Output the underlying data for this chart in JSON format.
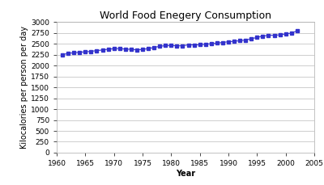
{
  "title": "World Food Enegery Consumption",
  "xlabel": "Year",
  "ylabel": "Kilocalories per person per day",
  "years": [
    1961,
    1962,
    1963,
    1964,
    1965,
    1966,
    1967,
    1968,
    1969,
    1970,
    1971,
    1972,
    1973,
    1974,
    1975,
    1976,
    1977,
    1978,
    1979,
    1980,
    1981,
    1982,
    1983,
    1984,
    1985,
    1986,
    1987,
    1988,
    1989,
    1990,
    1991,
    1992,
    1993,
    1994,
    1995,
    1996,
    1997,
    1998,
    1999,
    2000,
    2001,
    2002
  ],
  "values": [
    2254,
    2283,
    2298,
    2310,
    2318,
    2330,
    2347,
    2360,
    2378,
    2391,
    2395,
    2380,
    2376,
    2364,
    2372,
    2394,
    2418,
    2447,
    2461,
    2466,
    2456,
    2459,
    2479,
    2478,
    2480,
    2497,
    2503,
    2520,
    2535,
    2550,
    2562,
    2575,
    2590,
    2620,
    2650,
    2680,
    2700,
    2700,
    2710,
    2730,
    2750,
    2800
  ],
  "line_color": "#3333cc",
  "marker": "s",
  "marker_size": 2.5,
  "xlim": [
    1960,
    2005
  ],
  "ylim": [
    0,
    3000
  ],
  "yticks": [
    0,
    250,
    500,
    750,
    1000,
    1250,
    1500,
    1750,
    2000,
    2250,
    2500,
    2750,
    3000
  ],
  "xticks": [
    1960,
    1965,
    1970,
    1975,
    1980,
    1985,
    1990,
    1995,
    2000,
    2005
  ],
  "background_color": "#ffffff",
  "grid_color": "#bbbbbb",
  "title_fontsize": 9,
  "axis_label_fontsize": 7,
  "tick_fontsize": 6.5
}
